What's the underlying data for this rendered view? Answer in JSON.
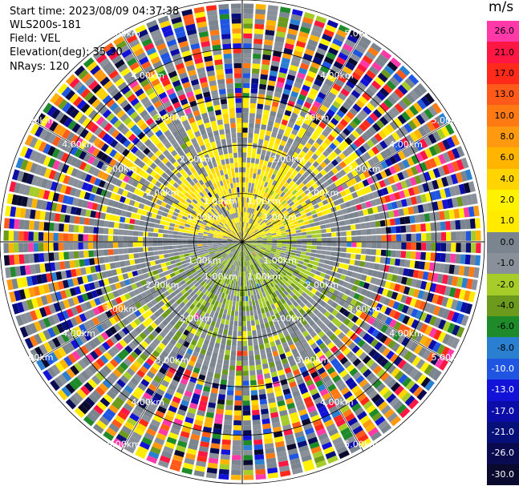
{
  "header": {
    "start_time": "Start time: 2023/08/09 04:37:38",
    "instrument": "WLS200s-181",
    "field": "Field: VEL",
    "elevation": "Elevation(deg): 35.30",
    "nrays": "NRays: 120"
  },
  "colorbar": {
    "unit": "m/s",
    "levels": [
      {
        "label": "26.0",
        "color": "#ff3aa8",
        "text": "#000000"
      },
      {
        "label": "21.0",
        "color": "#ff1744",
        "text": "#000000"
      },
      {
        "label": "17.0",
        "color": "#ff2a1a",
        "text": "#000000"
      },
      {
        "label": "13.0",
        "color": "#ff5a1a",
        "text": "#000000"
      },
      {
        "label": "10.0",
        "color": "#ff7a12",
        "text": "#000000"
      },
      {
        "label": "8.0",
        "color": "#ff9a10",
        "text": "#000000"
      },
      {
        "label": "6.0",
        "color": "#ffb400",
        "text": "#000000"
      },
      {
        "label": "4.0",
        "color": "#ffd400",
        "text": "#000000"
      },
      {
        "label": "2.0",
        "color": "#fff200",
        "text": "#000000"
      },
      {
        "label": "1.0",
        "color": "#ffea00",
        "text": "#000000"
      },
      {
        "label": "0.0",
        "color": "#7b8590",
        "text": "#000000"
      },
      {
        "label": "-1.0",
        "color": "#8a9099",
        "text": "#000000"
      },
      {
        "label": "-2.0",
        "color": "#a6cc2a",
        "text": "#000000"
      },
      {
        "label": "-4.0",
        "color": "#6c9a1c",
        "text": "#000000"
      },
      {
        "label": "-6.0",
        "color": "#1e8a2a",
        "text": "#000000"
      },
      {
        "label": "-8.0",
        "color": "#2b7fd0",
        "text": "#000000"
      },
      {
        "label": "-10.0",
        "color": "#1f55e0",
        "text": "#ffffff"
      },
      {
        "label": "-13.0",
        "color": "#1212d8",
        "text": "#ffffff"
      },
      {
        "label": "-17.0",
        "color": "#0c0ca8",
        "text": "#ffffff"
      },
      {
        "label": "-21.0",
        "color": "#061078",
        "text": "#ffffff"
      },
      {
        "label": "-26.0",
        "color": "#0a0a50",
        "text": "#ffffff"
      },
      {
        "label": "-30.0",
        "color": "#0a0a2e",
        "text": "#ffffff"
      }
    ]
  },
  "range_labels": [
    "1.00km",
    "2.00km",
    "3.00km",
    "4.00km",
    "5.00km"
  ],
  "chart_data": {
    "type": "heatmap",
    "projection": "polar-ppi",
    "field": "VEL",
    "nrays": 120,
    "range_rings_km": [
      1,
      2,
      3,
      4,
      5
    ],
    "max_range_km": 5,
    "colorbar_levels_ms": [
      26,
      21,
      17,
      13,
      10,
      8,
      6,
      4,
      2,
      1,
      0,
      -1,
      -2,
      -4,
      -6,
      -8,
      -10,
      -13,
      -17,
      -21,
      -26,
      -30
    ],
    "features": [
      {
        "region": "inner ~1.5 km, north",
        "value_ms": 1.5
      },
      {
        "region": "inner ~1.5 km, south and east",
        "value_ms": -1.5
      },
      {
        "region": "beyond ~3 km",
        "value_ms": "noisy, full range -30 to 26"
      }
    ]
  }
}
